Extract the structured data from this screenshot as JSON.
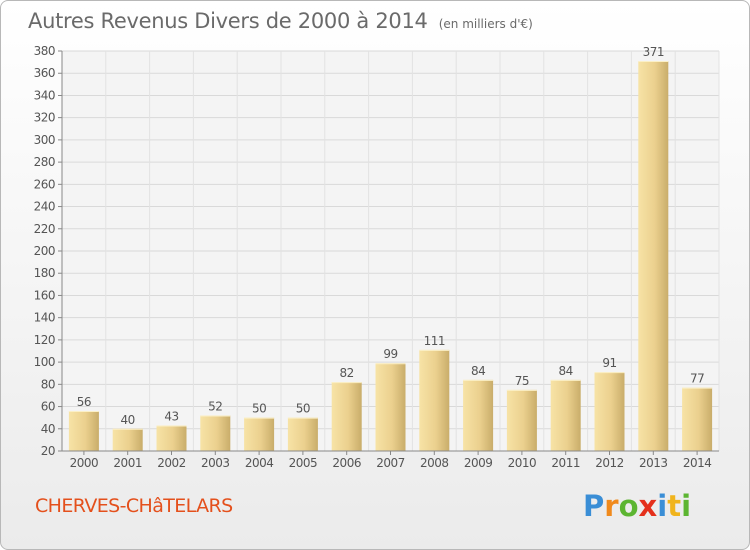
{
  "page": {
    "title": "Autres Revenus Divers de 2000 à 2014",
    "subtitle": "(en milliers d'€)",
    "commune": "CHERVES-CHâTELARS",
    "logo_letters": [
      {
        "char": "P",
        "color": "#3a8ed6"
      },
      {
        "char": "r",
        "color": "#f08a1c"
      },
      {
        "char": "o",
        "color": "#5cb531"
      },
      {
        "char": "x",
        "color": "#e4301c"
      },
      {
        "char": "i",
        "color": "#3a8ed6"
      },
      {
        "char": "t",
        "color": "#f0b41c"
      },
      {
        "char": "i",
        "color": "#5cb531"
      }
    ]
  },
  "chart_data": {
    "type": "bar",
    "title": "Autres Revenus Divers de 2000 à 2014",
    "subtitle": "(en milliers d'€)",
    "categories": [
      "2000",
      "2001",
      "2002",
      "2003",
      "2004",
      "2005",
      "2006",
      "2007",
      "2008",
      "2009",
      "2010",
      "2011",
      "2012",
      "2013",
      "2014"
    ],
    "values": [
      56,
      40,
      43,
      52,
      50,
      50,
      82,
      99,
      111,
      84,
      75,
      84,
      91,
      371,
      77
    ],
    "ylim": [
      20,
      380
    ],
    "yticks": [
      20,
      40,
      60,
      80,
      100,
      120,
      140,
      160,
      180,
      200,
      220,
      240,
      260,
      280,
      300,
      320,
      340,
      360,
      380
    ],
    "grid": true,
    "bar_color": "#e8cd86",
    "data_labels": true
  }
}
